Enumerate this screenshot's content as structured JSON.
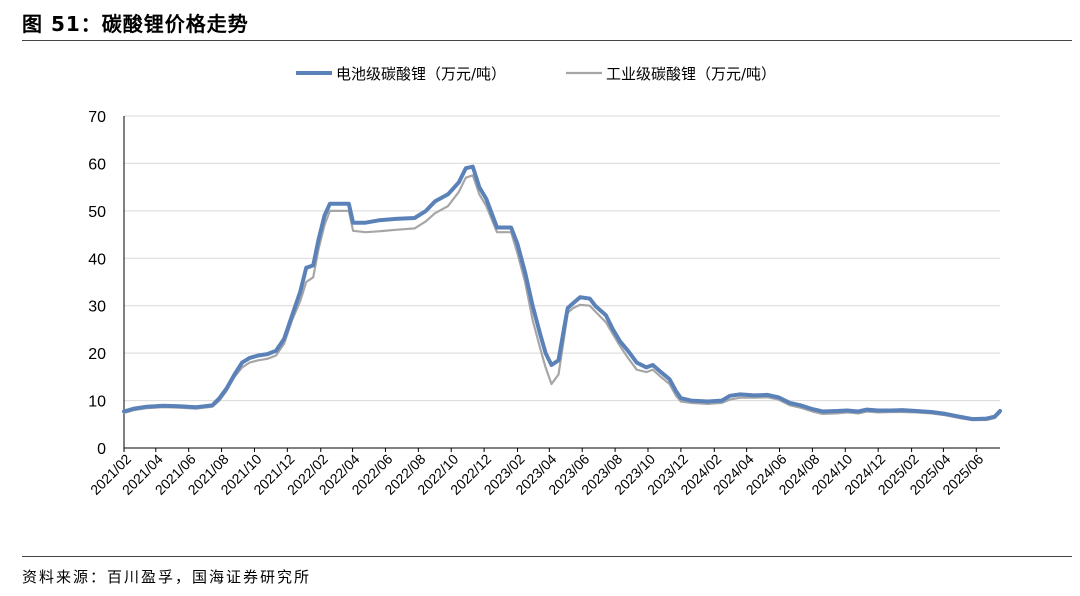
{
  "header": {
    "title": "图 51：碳酸锂价格走势"
  },
  "footer": {
    "source": "资料来源：百川盈孚，国海证券研究所"
  },
  "chart_data": {
    "type": "line",
    "title": "",
    "xlabel": "",
    "ylabel": "",
    "ylim": [
      0,
      70
    ],
    "yticks": [
      0,
      10,
      20,
      30,
      40,
      50,
      60,
      70
    ],
    "grid": "horizontal",
    "legend_position": "top-center",
    "x_ticks": [
      "2021/02",
      "2021/04",
      "2021/06",
      "2021/08",
      "2021/10",
      "2021/12",
      "2022/02",
      "2022/04",
      "2022/06",
      "2022/08",
      "2022/10",
      "2022/12",
      "2023/02",
      "2023/04",
      "2023/06",
      "2023/08",
      "2023/10",
      "2023/12",
      "2024/02",
      "2024/04",
      "2024/06",
      "2024/08",
      "2024/10",
      "2024/12",
      "2025/02",
      "2025/04",
      "2025/06"
    ],
    "x_range": [
      "2021-02-01",
      "2025-07-15"
    ],
    "series": [
      {
        "name": "电池级碳酸锂（万元/吨）",
        "color": "#5a82b8",
        "points": [
          [
            "2021-02-01",
            7.7
          ],
          [
            "2021-02-20",
            8.3
          ],
          [
            "2021-03-15",
            8.7
          ],
          [
            "2021-04-15",
            8.9
          ],
          [
            "2021-05-15",
            8.8
          ],
          [
            "2021-06-15",
            8.6
          ],
          [
            "2021-07-15",
            9.0
          ],
          [
            "2021-07-28",
            10.5
          ],
          [
            "2021-08-10",
            12.5
          ],
          [
            "2021-08-25",
            15.5
          ],
          [
            "2021-09-08",
            18.0
          ],
          [
            "2021-09-22",
            19.0
          ],
          [
            "2021-10-08",
            19.5
          ],
          [
            "2021-10-25",
            19.8
          ],
          [
            "2021-11-10",
            20.5
          ],
          [
            "2021-11-25",
            23.0
          ],
          [
            "2021-12-10",
            28.0
          ],
          [
            "2021-12-25",
            33.0
          ],
          [
            "2022-01-05",
            38.0
          ],
          [
            "2022-01-18",
            38.5
          ],
          [
            "2022-01-28",
            44.0
          ],
          [
            "2022-02-08",
            49.0
          ],
          [
            "2022-02-18",
            51.5
          ],
          [
            "2022-03-25",
            51.5
          ],
          [
            "2022-04-02",
            47.5
          ],
          [
            "2022-04-25",
            47.5
          ],
          [
            "2022-05-20",
            48.0
          ],
          [
            "2022-06-20",
            48.3
          ],
          [
            "2022-07-25",
            48.5
          ],
          [
            "2022-08-15",
            50.0
          ],
          [
            "2022-09-01",
            52.0
          ],
          [
            "2022-09-25",
            53.5
          ],
          [
            "2022-10-15",
            56.0
          ],
          [
            "2022-10-28",
            59.0
          ],
          [
            "2022-11-10",
            59.3
          ],
          [
            "2022-11-22",
            55.0
          ],
          [
            "2022-12-05",
            52.5
          ],
          [
            "2022-12-25",
            46.5
          ],
          [
            "2023-01-20",
            46.5
          ],
          [
            "2023-02-01",
            43.0
          ],
          [
            "2023-02-15",
            37.0
          ],
          [
            "2023-03-01",
            30.0
          ],
          [
            "2023-03-15",
            24.0
          ],
          [
            "2023-03-25",
            20.0
          ],
          [
            "2023-04-05",
            17.5
          ],
          [
            "2023-04-18",
            18.5
          ],
          [
            "2023-04-28",
            25.0
          ],
          [
            "2023-05-05",
            29.5
          ],
          [
            "2023-05-15",
            30.5
          ],
          [
            "2023-05-28",
            31.8
          ],
          [
            "2023-06-15",
            31.5
          ],
          [
            "2023-06-25",
            30.0
          ],
          [
            "2023-07-15",
            28.0
          ],
          [
            "2023-07-28",
            25.0
          ],
          [
            "2023-08-10",
            22.5
          ],
          [
            "2023-08-25",
            20.5
          ],
          [
            "2023-09-10",
            18.0
          ],
          [
            "2023-09-28",
            17.0
          ],
          [
            "2023-10-10",
            17.5
          ],
          [
            "2023-10-25",
            16.0
          ],
          [
            "2023-11-10",
            14.5
          ],
          [
            "2023-11-22",
            12.0
          ],
          [
            "2023-12-01",
            10.5
          ],
          [
            "2023-12-20",
            10.0
          ],
          [
            "2024-01-20",
            9.8
          ],
          [
            "2024-02-15",
            10.0
          ],
          [
            "2024-03-01",
            11.0
          ],
          [
            "2024-03-20",
            11.3
          ],
          [
            "2024-04-15",
            11.1
          ],
          [
            "2024-05-10",
            11.2
          ],
          [
            "2024-05-30",
            10.7
          ],
          [
            "2024-06-20",
            9.5
          ],
          [
            "2024-07-10",
            9.0
          ],
          [
            "2024-08-01",
            8.2
          ],
          [
            "2024-08-20",
            7.7
          ],
          [
            "2024-09-15",
            7.8
          ],
          [
            "2024-10-05",
            7.9
          ],
          [
            "2024-10-25",
            7.7
          ],
          [
            "2024-11-10",
            8.1
          ],
          [
            "2024-12-01",
            7.9
          ],
          [
            "2024-12-25",
            7.9
          ],
          [
            "2025-01-15",
            8.0
          ],
          [
            "2025-02-10",
            7.8
          ],
          [
            "2025-03-10",
            7.6
          ],
          [
            "2025-04-05",
            7.2
          ],
          [
            "2025-05-01",
            6.6
          ],
          [
            "2025-05-25",
            6.1
          ],
          [
            "2025-06-20",
            6.2
          ],
          [
            "2025-07-05",
            6.6
          ],
          [
            "2025-07-15",
            7.8
          ]
        ]
      },
      {
        "name": "工业级碳酸锂（万元/吨）",
        "color": "#a6a6a6",
        "points": [
          [
            "2021-02-01",
            7.4
          ],
          [
            "2021-02-20",
            8.0
          ],
          [
            "2021-03-15",
            8.4
          ],
          [
            "2021-04-15",
            8.6
          ],
          [
            "2021-05-15",
            8.5
          ],
          [
            "2021-06-15",
            8.3
          ],
          [
            "2021-07-15",
            8.7
          ],
          [
            "2021-07-28",
            10.0
          ],
          [
            "2021-08-10",
            12.0
          ],
          [
            "2021-08-25",
            15.0
          ],
          [
            "2021-09-08",
            17.0
          ],
          [
            "2021-09-22",
            18.0
          ],
          [
            "2021-10-08",
            18.5
          ],
          [
            "2021-10-25",
            18.8
          ],
          [
            "2021-11-10",
            19.5
          ],
          [
            "2021-11-25",
            22.0
          ],
          [
            "2021-12-10",
            27.0
          ],
          [
            "2021-12-25",
            31.0
          ],
          [
            "2022-01-05",
            35.0
          ],
          [
            "2022-01-18",
            36.0
          ],
          [
            "2022-01-28",
            42.0
          ],
          [
            "2022-02-08",
            47.0
          ],
          [
            "2022-02-18",
            50.0
          ],
          [
            "2022-03-25",
            50.0
          ],
          [
            "2022-04-02",
            45.8
          ],
          [
            "2022-04-25",
            45.5
          ],
          [
            "2022-05-20",
            45.7
          ],
          [
            "2022-06-20",
            46.0
          ],
          [
            "2022-07-25",
            46.3
          ],
          [
            "2022-08-15",
            47.8
          ],
          [
            "2022-09-01",
            49.5
          ],
          [
            "2022-09-25",
            51.0
          ],
          [
            "2022-10-15",
            54.0
          ],
          [
            "2022-10-28",
            57.0
          ],
          [
            "2022-11-10",
            57.5
          ],
          [
            "2022-11-22",
            53.5
          ],
          [
            "2022-12-05",
            51.0
          ],
          [
            "2022-12-25",
            45.5
          ],
          [
            "2023-01-20",
            45.5
          ],
          [
            "2023-02-01",
            41.0
          ],
          [
            "2023-02-15",
            35.0
          ],
          [
            "2023-03-01",
            27.0
          ],
          [
            "2023-03-15",
            21.0
          ],
          [
            "2023-03-25",
            17.0
          ],
          [
            "2023-04-05",
            13.5
          ],
          [
            "2023-04-18",
            15.5
          ],
          [
            "2023-04-28",
            23.0
          ],
          [
            "2023-05-05",
            28.5
          ],
          [
            "2023-05-15",
            29.5
          ],
          [
            "2023-05-28",
            30.2
          ],
          [
            "2023-06-15",
            30.0
          ],
          [
            "2023-06-25",
            28.8
          ],
          [
            "2023-07-15",
            26.5
          ],
          [
            "2023-07-28",
            24.0
          ],
          [
            "2023-08-10",
            21.5
          ],
          [
            "2023-08-25",
            19.0
          ],
          [
            "2023-09-10",
            16.5
          ],
          [
            "2023-09-28",
            16.0
          ],
          [
            "2023-10-10",
            16.5
          ],
          [
            "2023-10-25",
            15.0
          ],
          [
            "2023-11-10",
            13.5
          ],
          [
            "2023-11-22",
            11.0
          ],
          [
            "2023-12-01",
            9.8
          ],
          [
            "2023-12-20",
            9.5
          ],
          [
            "2024-01-20",
            9.3
          ],
          [
            "2024-02-15",
            9.5
          ],
          [
            "2024-03-01",
            10.2
          ],
          [
            "2024-03-20",
            10.6
          ],
          [
            "2024-04-15",
            10.6
          ],
          [
            "2024-05-10",
            10.7
          ],
          [
            "2024-05-30",
            10.2
          ],
          [
            "2024-06-20",
            9.0
          ],
          [
            "2024-07-10",
            8.5
          ],
          [
            "2024-08-01",
            7.7
          ],
          [
            "2024-08-20",
            7.2
          ],
          [
            "2024-09-15",
            7.3
          ],
          [
            "2024-10-05",
            7.5
          ],
          [
            "2024-10-25",
            7.3
          ],
          [
            "2024-11-10",
            7.7
          ],
          [
            "2024-12-01",
            7.5
          ],
          [
            "2024-12-25",
            7.6
          ],
          [
            "2025-01-15",
            7.6
          ],
          [
            "2025-02-10",
            7.5
          ],
          [
            "2025-03-10",
            7.3
          ],
          [
            "2025-04-05",
            6.9
          ],
          [
            "2025-05-01",
            6.3
          ],
          [
            "2025-05-25",
            5.9
          ],
          [
            "2025-06-20",
            5.9
          ],
          [
            "2025-07-05",
            6.3
          ],
          [
            "2025-07-15",
            7.4
          ]
        ]
      }
    ]
  }
}
